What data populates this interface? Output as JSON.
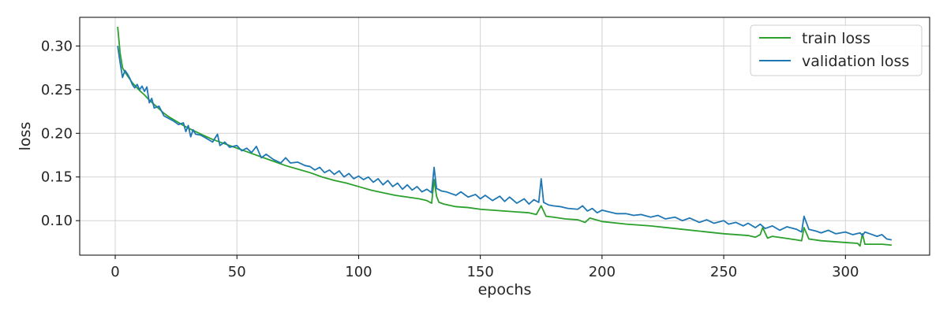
{
  "chart_data": {
    "type": "line",
    "title": "",
    "xlabel": "epochs",
    "ylabel": "loss",
    "xlim": [
      -14.6,
      334.6
    ],
    "ylim": [
      0.0605,
      0.3328
    ],
    "x_ticks": [
      0,
      50,
      100,
      150,
      200,
      250,
      300
    ],
    "y_ticks": [
      0.1,
      0.15,
      0.2,
      0.25,
      0.3
    ],
    "y_tick_labels": [
      "0.10",
      "0.15",
      "0.20",
      "0.25",
      "0.30"
    ],
    "grid": true,
    "legend_position": "top-right",
    "colors": {
      "train": "#2ca02c",
      "validation": "#1f77b4",
      "grid": "#d2d2d2",
      "axes": "#000000"
    },
    "series": [
      {
        "name": "train loss",
        "color": "#2ca02c",
        "x": [
          1,
          2,
          3,
          4,
          5,
          6,
          7,
          8,
          9,
          10,
          12,
          14,
          16,
          18,
          20,
          22,
          25,
          28,
          30,
          33,
          36,
          40,
          45,
          50,
          55,
          60,
          65,
          70,
          75,
          80,
          85,
          90,
          95,
          100,
          105,
          110,
          115,
          120,
          125,
          128,
          130,
          131,
          132,
          133,
          135,
          140,
          145,
          150,
          155,
          160,
          165,
          170,
          173,
          175,
          177,
          180,
          185,
          190,
          193,
          195,
          200,
          210,
          220,
          230,
          240,
          250,
          260,
          263,
          265,
          266,
          267,
          268,
          270,
          275,
          280,
          282,
          283,
          285,
          290,
          295,
          300,
          305,
          306,
          307,
          308,
          310,
          315,
          319
        ],
        "y": [
          0.322,
          0.292,
          0.275,
          0.27,
          0.266,
          0.262,
          0.258,
          0.255,
          0.252,
          0.249,
          0.244,
          0.238,
          0.233,
          0.228,
          0.223,
          0.219,
          0.214,
          0.209,
          0.206,
          0.202,
          0.198,
          0.193,
          0.188,
          0.183,
          0.178,
          0.173,
          0.168,
          0.163,
          0.159,
          0.155,
          0.15,
          0.146,
          0.143,
          0.139,
          0.135,
          0.132,
          0.129,
          0.127,
          0.125,
          0.123,
          0.12,
          0.147,
          0.128,
          0.121,
          0.119,
          0.116,
          0.115,
          0.113,
          0.112,
          0.111,
          0.11,
          0.109,
          0.107,
          0.117,
          0.105,
          0.104,
          0.102,
          0.101,
          0.098,
          0.103,
          0.099,
          0.096,
          0.094,
          0.091,
          0.088,
          0.085,
          0.083,
          0.081,
          0.084,
          0.092,
          0.086,
          0.08,
          0.082,
          0.08,
          0.078,
          0.077,
          0.092,
          0.079,
          0.077,
          0.076,
          0.075,
          0.074,
          0.071,
          0.085,
          0.073,
          0.073,
          0.073,
          0.072
        ]
      },
      {
        "name": "validation loss",
        "color": "#1f77b4",
        "x": [
          1,
          2,
          3,
          4,
          5,
          6,
          7,
          8,
          9,
          10,
          11,
          12,
          13,
          14,
          15,
          16,
          18,
          20,
          22,
          24,
          26,
          28,
          29,
          30,
          31,
          32,
          33,
          35,
          37,
          40,
          42,
          43,
          45,
          47,
          50,
          52,
          54,
          56,
          58,
          60,
          62,
          65,
          68,
          70,
          72,
          75,
          78,
          80,
          82,
          84,
          86,
          88,
          90,
          92,
          94,
          96,
          98,
          100,
          102,
          104,
          106,
          108,
          110,
          112,
          114,
          116,
          118,
          120,
          122,
          124,
          126,
          128,
          130,
          131,
          132,
          134,
          136,
          138,
          140,
          142,
          145,
          148,
          150,
          152,
          155,
          158,
          160,
          162,
          165,
          168,
          170,
          172,
          174,
          175,
          176,
          178,
          180,
          183,
          186,
          190,
          192,
          194,
          196,
          198,
          200,
          203,
          206,
          210,
          213,
          216,
          220,
          223,
          226,
          230,
          233,
          236,
          240,
          243,
          246,
          250,
          252,
          255,
          258,
          260,
          263,
          265,
          267,
          270,
          273,
          276,
          280,
          282,
          283,
          285,
          288,
          290,
          293,
          296,
          300,
          303,
          306,
          307,
          308,
          310,
          313,
          315,
          317,
          319
        ],
        "y": [
          0.3,
          0.281,
          0.264,
          0.272,
          0.268,
          0.263,
          0.256,
          0.252,
          0.256,
          0.25,
          0.254,
          0.248,
          0.253,
          0.235,
          0.24,
          0.229,
          0.231,
          0.22,
          0.217,
          0.214,
          0.21,
          0.212,
          0.202,
          0.209,
          0.196,
          0.204,
          0.199,
          0.198,
          0.195,
          0.19,
          0.199,
          0.186,
          0.19,
          0.184,
          0.186,
          0.18,
          0.183,
          0.178,
          0.185,
          0.172,
          0.176,
          0.17,
          0.166,
          0.172,
          0.166,
          0.167,
          0.163,
          0.162,
          0.158,
          0.161,
          0.155,
          0.158,
          0.153,
          0.157,
          0.15,
          0.154,
          0.148,
          0.151,
          0.147,
          0.15,
          0.144,
          0.148,
          0.141,
          0.146,
          0.139,
          0.143,
          0.136,
          0.141,
          0.135,
          0.139,
          0.133,
          0.136,
          0.132,
          0.161,
          0.137,
          0.134,
          0.133,
          0.131,
          0.129,
          0.133,
          0.127,
          0.13,
          0.125,
          0.129,
          0.123,
          0.128,
          0.122,
          0.127,
          0.12,
          0.125,
          0.119,
          0.124,
          0.121,
          0.148,
          0.121,
          0.118,
          0.117,
          0.116,
          0.114,
          0.113,
          0.117,
          0.111,
          0.114,
          0.109,
          0.112,
          0.11,
          0.108,
          0.108,
          0.106,
          0.107,
          0.104,
          0.106,
          0.102,
          0.104,
          0.1,
          0.103,
          0.098,
          0.101,
          0.097,
          0.1,
          0.096,
          0.098,
          0.094,
          0.097,
          0.092,
          0.096,
          0.091,
          0.094,
          0.089,
          0.093,
          0.09,
          0.087,
          0.105,
          0.09,
          0.088,
          0.086,
          0.089,
          0.085,
          0.087,
          0.084,
          0.086,
          0.083,
          0.087,
          0.085,
          0.082,
          0.084,
          0.079,
          0.078
        ]
      }
    ]
  }
}
